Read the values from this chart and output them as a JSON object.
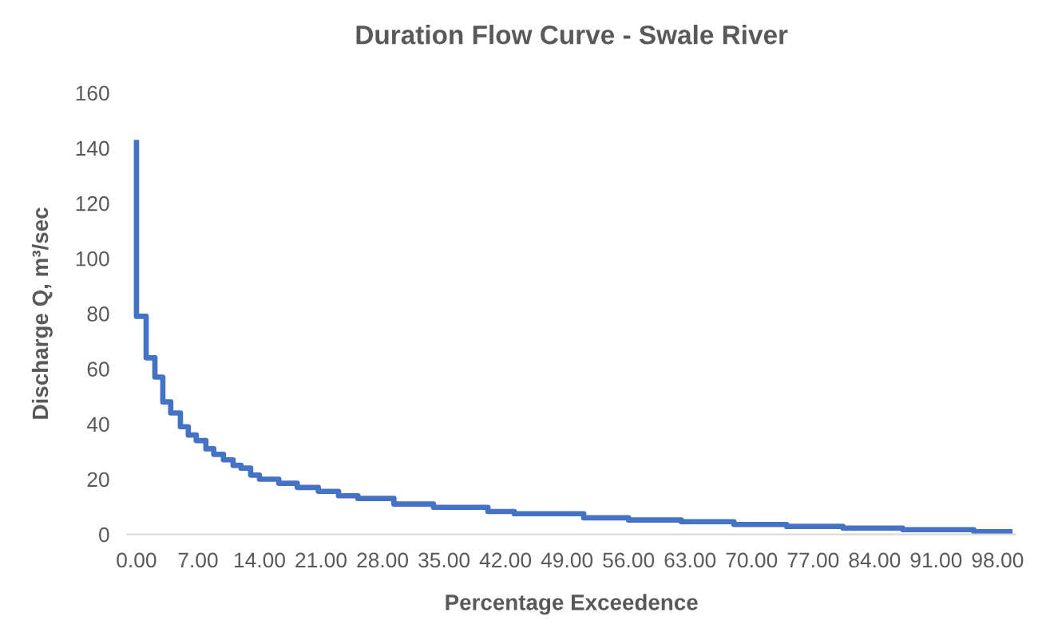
{
  "chart_data": {
    "type": "step",
    "title": "Duration Flow Curve - Swale River",
    "xlabel": "Percentage Exceedence",
    "ylabel": "Discharge Q, m³/sec",
    "x": [
      0,
      0,
      1.1,
      2.1,
      3.0,
      3.9,
      5.0,
      5.9,
      6.8,
      7.9,
      8.8,
      9.9,
      11.0,
      11.9,
      13.0,
      14.0,
      16.2,
      18.3,
      20.7,
      23.0,
      25.2,
      29.3,
      33.8,
      40.0,
      43.0,
      50.9,
      56.0,
      62.0,
      68.0,
      74.0,
      80.4,
      87.2,
      95.3,
      99.4
    ],
    "series": [
      {
        "color": "#4472c4",
        "values": [
          142,
          79,
          64,
          57,
          48,
          44,
          39,
          36,
          34,
          31,
          29,
          27,
          25,
          24,
          21.5,
          20,
          18.5,
          17,
          15.6,
          14,
          13,
          11,
          9.8,
          8.3,
          7.5,
          6,
          5.2,
          4.6,
          3.6,
          2.9,
          2.3,
          1.7,
          1.0,
          1.0
        ]
      }
    ],
    "xlim": [
      -1,
      100
    ],
    "xticks": [
      {
        "value": 0,
        "label": "0.00"
      },
      {
        "value": 7,
        "label": "7.00"
      },
      {
        "value": 14,
        "label": "14.00"
      },
      {
        "value": 21,
        "label": "21.00"
      },
      {
        "value": 28,
        "label": "28.00"
      },
      {
        "value": 35,
        "label": "35.00"
      },
      {
        "value": 42,
        "label": "42.00"
      },
      {
        "value": 49,
        "label": "49.00"
      },
      {
        "value": 56,
        "label": "56.00"
      },
      {
        "value": 63,
        "label": "63.00"
      },
      {
        "value": 70,
        "label": "70.00"
      },
      {
        "value": 77,
        "label": "77.00"
      },
      {
        "value": 84,
        "label": "84.00"
      },
      {
        "value": 91,
        "label": "91.00"
      },
      {
        "value": 98,
        "label": "98.00"
      }
    ],
    "ylim": [
      0,
      160
    ],
    "yticks": [
      0,
      20,
      40,
      60,
      80,
      100,
      120,
      140,
      160
    ],
    "grid": false,
    "marker": "none",
    "line_style": "solid"
  }
}
